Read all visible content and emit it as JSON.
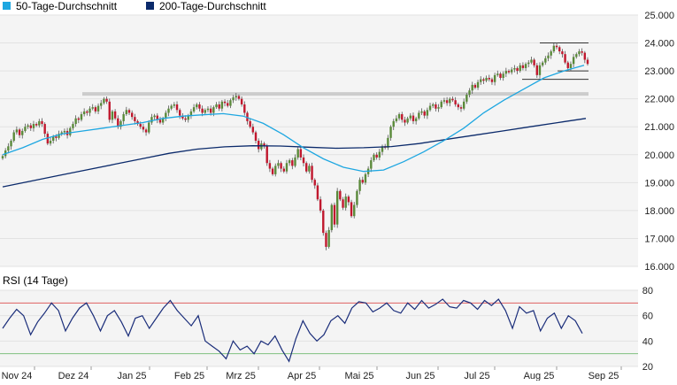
{
  "legend": [
    {
      "label": "50-Tage-Durchschnitt",
      "color": "#1ea7e1"
    },
    {
      "label": "200-Tage-Durchschnitt",
      "color": "#0b2a6b"
    }
  ],
  "rsi_title": "RSI (14 Tage)",
  "colors": {
    "up": "#5a8a3a",
    "down": "#c0182e",
    "ma50": "#1ea7e1",
    "ma200": "#0b2a6b",
    "rsi": "#1a2d7a",
    "rsi_upper": "#e06060",
    "rsi_lower": "#80c080",
    "panel": "#f4f4f4",
    "grid": "#e2e2e2",
    "text": "#222222",
    "support": "#cccccc"
  },
  "chart_data": [
    {
      "type": "candlestick",
      "title": "",
      "x_tick_labels": [
        "Nov 24",
        "Dez 24",
        "Jan 25",
        "Feb 25",
        "Mrz 25",
        "Apr 25",
        "Mai 25",
        "Jun 25",
        "Jul 25",
        "Aug 25",
        "Sep 25"
      ],
      "y_tick_labels": [
        "16.000",
        "17.000",
        "18.000",
        "19.000",
        "20.000",
        "21.000",
        "22.000",
        "23.000",
        "24.000",
        "25.000"
      ],
      "ylim": [
        16000,
        25000
      ],
      "grid": true,
      "ohlc_close": [
        19950,
        20150,
        20300,
        20500,
        20800,
        20900,
        20700,
        20850,
        21000,
        21050,
        20950,
        21100,
        21050,
        21200,
        21100,
        20750,
        20400,
        20500,
        20650,
        20600,
        20750,
        20800,
        20850,
        20700,
        20950,
        21100,
        21300,
        21250,
        21450,
        21550,
        21500,
        21650,
        21700,
        21550,
        21750,
        21850,
        22000,
        21900,
        21250,
        21550,
        21300,
        21000,
        21200,
        21450,
        21600,
        21500,
        21350,
        21200,
        21100,
        21000,
        20900,
        20800,
        21150,
        21350,
        21400,
        21250,
        21150,
        21300,
        21500,
        21650,
        21750,
        21800,
        21600,
        21400,
        21300,
        21250,
        21400,
        21550,
        21700,
        21800,
        21650,
        21500,
        21600,
        21650,
        21500,
        21700,
        21800,
        21650,
        21900,
        21850,
        21750,
        21950,
        22050,
        22100,
        22000,
        21800,
        21500,
        21200,
        21000,
        20800,
        20500,
        20200,
        20400,
        20300,
        19700,
        19500,
        19300,
        19600,
        19700,
        19500,
        19400,
        19700,
        19800,
        19600,
        19900,
        20200,
        19900,
        19700,
        19400,
        19600,
        19100,
        18900,
        18400,
        18000,
        17200,
        16700,
        17300,
        18200,
        17500,
        18700,
        18400,
        18100,
        18500,
        18300,
        17800,
        18200,
        18700,
        19100,
        19000,
        19300,
        19500,
        19800,
        20000,
        19900,
        20100,
        20300,
        20250,
        20600,
        21000,
        21200,
        21300,
        21450,
        21250,
        21150,
        21300,
        21400,
        21200,
        21300,
        21500,
        21550,
        21400,
        21600,
        21750,
        21800,
        21650,
        21700,
        21900,
        21950,
        21850,
        22000,
        21950,
        21800,
        21700,
        21650,
        21900,
        22150,
        22300,
        22500,
        22400,
        22600,
        22700,
        22650,
        22750,
        22700,
        22600,
        22850,
        22900,
        22750,
        22900,
        23000,
        22950,
        23050,
        23100,
        23000,
        23200,
        23100,
        23250,
        23300,
        23400,
        23200,
        22850,
        23200,
        23300,
        23450,
        23550,
        23700,
        23900,
        23850,
        23700,
        23600,
        23300,
        23100,
        23250,
        23500,
        23600,
        23700,
        23650,
        23400,
        23250
      ]
    },
    {
      "type": "line",
      "title": "",
      "series": [
        {
          "name": "50-Tage-Durchschnitt",
          "values": [
            20000,
            20250,
            20550,
            20750,
            20850,
            20950,
            21050,
            21150,
            21300,
            21380,
            21430,
            21470,
            21380,
            21120,
            20720,
            20250,
            19850,
            19550,
            19400,
            19450,
            19750,
            20100,
            20500,
            20950,
            21500,
            21950,
            22350,
            22750,
            23000,
            23200
          ]
        },
        {
          "name": "200-Tage-Durchschnitt",
          "values": [
            18850,
            19050,
            19250,
            19450,
            19650,
            19850,
            20050,
            20200,
            20280,
            20320,
            20310,
            20270,
            20230,
            20250,
            20290,
            20400,
            20550,
            20700,
            20850,
            21000,
            21150,
            21300
          ]
        }
      ],
      "horizontal_levels": [
        24000,
        23000,
        22700,
        22200,
        22150
      ]
    },
    {
      "type": "line",
      "title": "RSI (14 Tage)",
      "y_tick_labels": [
        "20",
        "40",
        "60",
        "80"
      ],
      "ylim": [
        20,
        80
      ],
      "reference_lines": [
        70,
        30
      ],
      "series": [
        {
          "name": "",
          "values": [
            50,
            58,
            65,
            60,
            45,
            55,
            62,
            70,
            64,
            48,
            58,
            66,
            70,
            60,
            48,
            60,
            64,
            55,
            44,
            58,
            60,
            50,
            58,
            66,
            72,
            64,
            58,
            52,
            60,
            40,
            36,
            32,
            26,
            40,
            33,
            36,
            30,
            40,
            37,
            44,
            33,
            24,
            42,
            56,
            46,
            40,
            45,
            56,
            60,
            54,
            66,
            71,
            70,
            63,
            66,
            70,
            64,
            62,
            70,
            65,
            72,
            66,
            69,
            73,
            67,
            66,
            72,
            70,
            65,
            72,
            68,
            73,
            64,
            50,
            67,
            62,
            64,
            48,
            58,
            62,
            50,
            60,
            56,
            46
          ]
        }
      ]
    }
  ]
}
